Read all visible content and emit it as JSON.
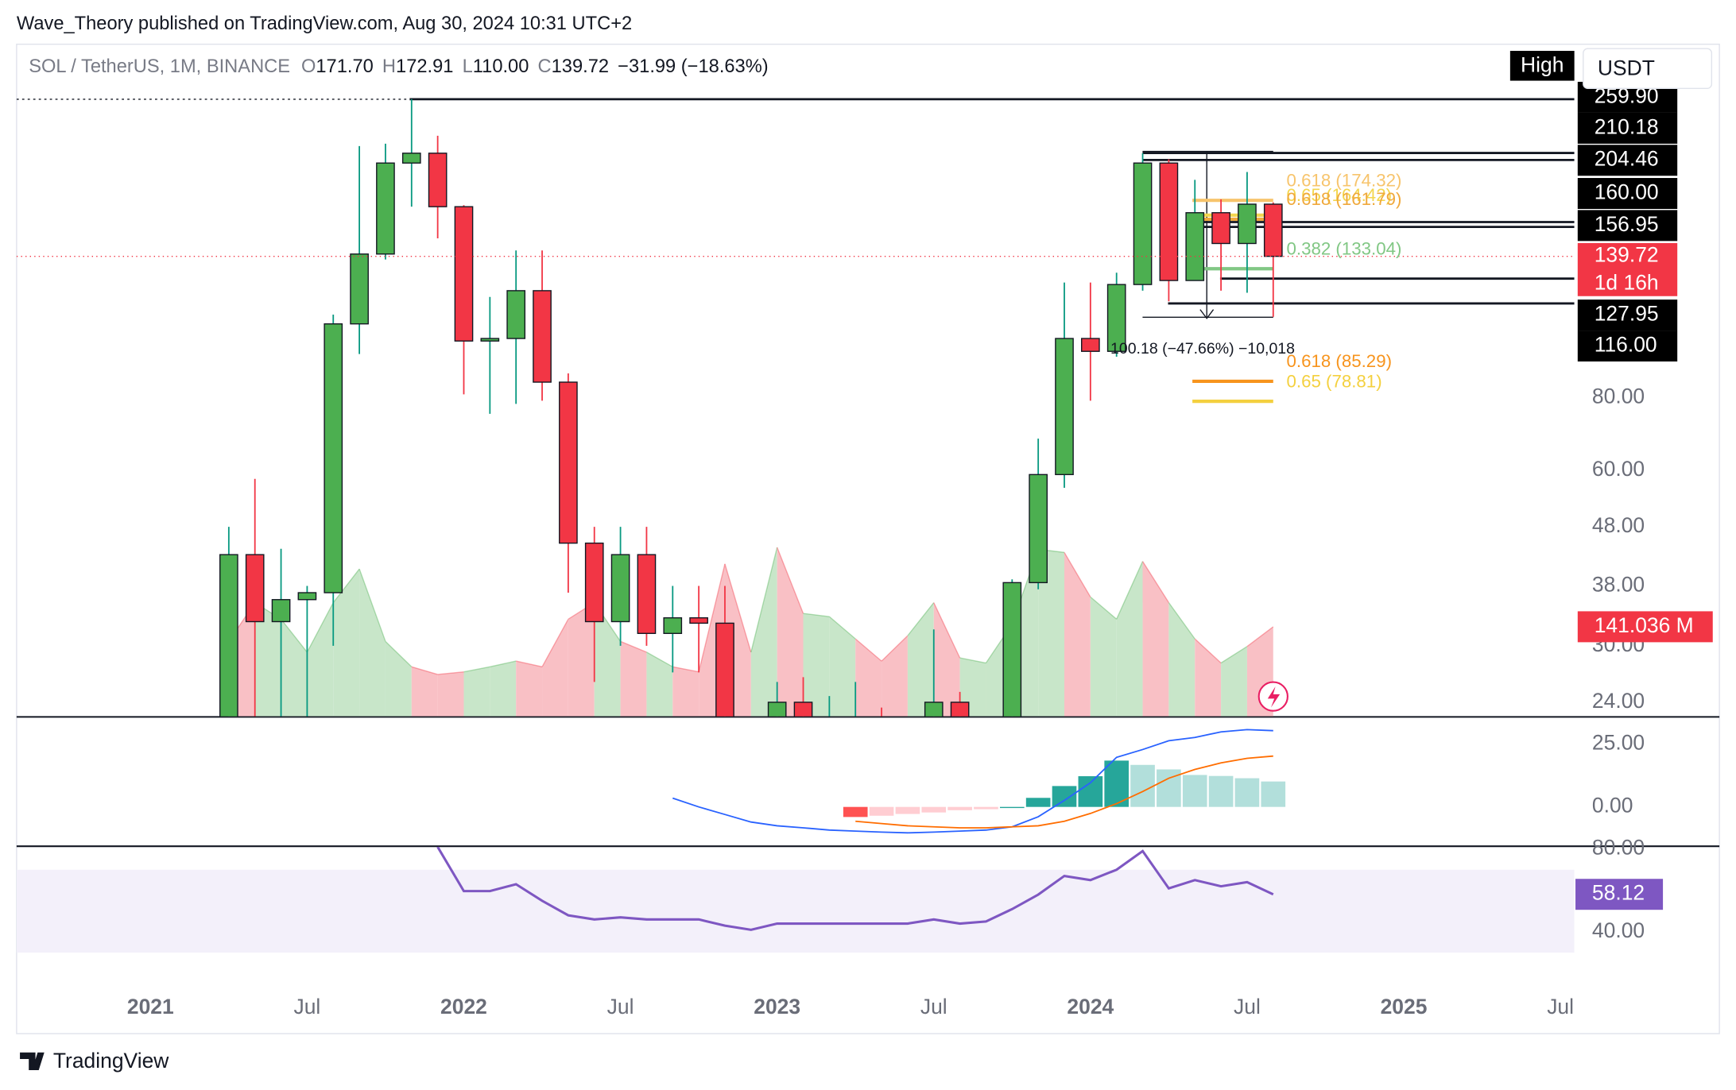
{
  "header": {
    "publisher": "Wave_Theory published on TradingView.com, Aug 30, 2024 10:31 UTC+2",
    "symbol": "SOL / TetherUS, 1M, BINANCE",
    "ohlc": [
      {
        "key": "O",
        "value": "171.70"
      },
      {
        "key": "H",
        "value": "172.91"
      },
      {
        "key": "L",
        "value": "110.00"
      },
      {
        "key": "C",
        "value": "139.72"
      }
    ],
    "change": "−31.99 (−18.63%)",
    "price_source": "High",
    "currency": "USDT"
  },
  "footer": {
    "brand": "TradingView"
  },
  "chart_data": [
    {
      "type": "candlestick",
      "x": [
        "2021-04",
        "2021-05",
        "2021-06",
        "2021-07",
        "2021-08",
        "2021-09",
        "2021-10",
        "2021-11",
        "2021-12",
        "2022-01",
        "2022-02",
        "2022-03",
        "2022-04",
        "2022-05",
        "2022-06",
        "2022-07",
        "2022-08",
        "2022-09",
        "2022-10",
        "2022-11",
        "2022-12",
        "2023-01",
        "2023-02",
        "2023-03",
        "2023-04",
        "2023-05",
        "2023-06",
        "2023-07",
        "2023-08",
        "2023-09",
        "2023-10",
        "2023-11",
        "2023-12",
        "2024-01",
        "2024-02",
        "2024-03",
        "2024-04",
        "2024-05",
        "2024-06",
        "2024-07",
        "2024-08"
      ],
      "open": [
        19.5,
        43,
        33,
        36,
        37,
        107,
        141,
        202,
        210,
        170,
        100,
        101,
        122,
        85,
        45,
        33,
        43,
        31.5,
        33.5,
        32.8,
        14,
        10,
        24,
        21,
        21,
        21.5,
        20.8,
        18.9,
        24,
        20.6,
        21.2,
        38.5,
        59,
        101,
        96,
        125,
        202,
        127,
        166,
        147,
        171.7
      ],
      "high": [
        48,
        58,
        44,
        38,
        111,
        216,
        218,
        260,
        225,
        171,
        119,
        143,
        143,
        88,
        48,
        48,
        48,
        38,
        38,
        38,
        15,
        26,
        26.5,
        24.6,
        26,
        23.5,
        21,
        32,
        25,
        21.5,
        39,
        68,
        126,
        126,
        131,
        210,
        205,
        189,
        175,
        195,
        172.91
      ],
      "low": [
        18,
        21.6,
        22.1,
        22.5,
        30,
        95,
        138,
        170,
        150,
        81,
        75,
        78,
        79,
        37,
        26,
        30,
        30,
        27,
        27,
        12,
        8,
        9.6,
        19.5,
        15.7,
        19.8,
        18.5,
        13.5,
        18,
        19,
        17,
        21,
        37.5,
        56,
        79,
        94,
        122,
        117,
        127,
        122,
        121,
        110
      ],
      "close": [
        43,
        33,
        36,
        37,
        107,
        141,
        202,
        210,
        170,
        100,
        101,
        122,
        85,
        45,
        33,
        43,
        31.5,
        33.5,
        32.8,
        14,
        10,
        24,
        21,
        21,
        21.5,
        20.8,
        18.9,
        24,
        20.6,
        21.2,
        38.5,
        59,
        101,
        96,
        125,
        202,
        127,
        166,
        147,
        171.7,
        139.72
      ],
      "up_color": "#4caf50",
      "down_color": "#f23645",
      "log_scale": true,
      "xlim": [
        "2020-08",
        "2025-08"
      ],
      "ylim": [
        22.7,
        323
      ],
      "yticks": [
        {
          "value": 80,
          "label": "80.00"
        },
        {
          "value": 60,
          "label": "60.00"
        },
        {
          "value": 48,
          "label": "48.00"
        },
        {
          "value": 38,
          "label": "38.00"
        },
        {
          "value": 30,
          "label": "30.00"
        },
        {
          "value": 24,
          "label": "24.00"
        }
      ],
      "xticks": [
        {
          "value": "2021-01",
          "label": "2021"
        },
        {
          "value": "2021-07",
          "label": "Jul"
        },
        {
          "value": "2022-01",
          "label": "2022"
        },
        {
          "value": "2022-07",
          "label": "Jul"
        },
        {
          "value": "2023-01",
          "label": "2023"
        },
        {
          "value": "2023-07",
          "label": "Jul"
        },
        {
          "value": "2024-01",
          "label": "2024"
        },
        {
          "value": "2024-07",
          "label": "Jul"
        },
        {
          "value": "2025-01",
          "label": "2025"
        },
        {
          "value": "2025-07",
          "label": "Jul"
        }
      ],
      "levels": [
        {
          "value": 259.9,
          "label": "259.90"
        },
        210.18,
        204.46,
        {
          "value": 160,
          "label": "160.00"
        },
        156.95,
        127.95,
        {
          "value": 116,
          "label": "116.00"
        }
      ],
      "countdown": "1d 16h",
      "fib_levels": [
        {
          "label": "0.618 (174.32)",
          "value": 174.32,
          "color": "#f7c46c"
        },
        {
          "label": "0.65 (164.42)",
          "value": 164.42,
          "color": "#f3d64e"
        },
        {
          "label": "0.618 (161.79)",
          "value": 161.79,
          "color": "#f0a93c"
        },
        {
          "label": "0.382 (133.04)",
          "value": 133.04,
          "color": "#81c784"
        },
        {
          "label": "0.618 (85.29)",
          "value": 85.29,
          "color": "#f7941d"
        },
        {
          "label": "0.65 (78.81)",
          "value": 78.81,
          "color": "#f4d03f"
        }
      ],
      "annotations": [
        "100.18 (−47.66%) −10,018"
      ]
    },
    {
      "type": "area",
      "values": [
        118,
        179,
        153,
        101,
        179,
        232,
        118,
        78,
        66,
        70,
        78,
        87,
        78,
        153,
        179,
        118,
        101,
        78,
        70,
        240,
        101,
        266,
        162,
        157,
        122,
        87,
        127,
        179,
        92,
        84,
        145,
        263,
        258,
        188,
        153,
        244,
        179,
        122,
        84,
        110,
        141.036
      ],
      "value_labels": [
        null,
        null,
        null,
        null,
        null,
        null,
        null,
        null,
        null,
        null,
        null,
        null,
        null,
        null,
        null,
        null,
        null,
        null,
        null,
        null,
        null,
        null,
        null,
        null,
        null,
        null,
        null,
        null,
        null,
        null,
        null,
        null,
        null,
        null,
        null,
        null,
        null,
        null,
        null,
        null,
        "141.036 M"
      ],
      "ylim": [
        0,
        1058
      ],
      "up_color": "#c8e6c9",
      "down_color": "#f9c0c5",
      "label_color": "#f23645"
    },
    {
      "type": "macd",
      "ylim": [
        -15.4,
        35.1
      ],
      "yticks": [
        {
          "value": 25,
          "label": "25.00"
        },
        {
          "value": 0,
          "label": "0.00"
        }
      ],
      "series": [
        {
          "color": "#2962ff",
          "values": [
            null,
            null,
            null,
            null,
            null,
            null,
            null,
            null,
            null,
            null,
            null,
            null,
            null,
            null,
            null,
            null,
            null,
            3.5,
            0,
            -3,
            -6,
            -7.5,
            -8.3,
            -9.2,
            -9.6,
            -10,
            -10.3,
            -10,
            -9.6,
            -9.2,
            -7.9,
            -3.9,
            2.6,
            9.6,
            19.7,
            22.8,
            26.3,
            27.6,
            29.8,
            30.7,
            30.3
          ]
        },
        {
          "color": "#ff6d00",
          "values": [
            null,
            null,
            null,
            null,
            null,
            null,
            null,
            null,
            null,
            null,
            null,
            null,
            null,
            null,
            null,
            null,
            null,
            null,
            null,
            null,
            null,
            null,
            null,
            null,
            -5.7,
            -6.6,
            -7.5,
            -7.9,
            -8.3,
            -8.3,
            -7.9,
            -7.5,
            -5.7,
            -2.6,
            1.3,
            6.1,
            11.4,
            14.9,
            17.5,
            19.3,
            20.2
          ]
        }
      ],
      "histogram": {
        "colors": [
          "#26a69a",
          "#b2dfdb",
          "#ffcdd2",
          "#ff5252"
        ],
        "values": [
          null,
          null,
          null,
          null,
          null,
          null,
          null,
          null,
          null,
          null,
          null,
          null,
          null,
          null,
          null,
          null,
          null,
          null,
          null,
          null,
          null,
          null,
          null,
          null,
          -4,
          -3.5,
          -2.8,
          -2.2,
          -1.3,
          -0.9,
          0,
          3.6,
          8.3,
          12.2,
          18.4,
          16.7,
          14.9,
          12.7,
          12.3,
          11.4,
          10.1
        ]
      }
    },
    {
      "type": "line",
      "color": "#7e57c2",
      "band": [
        30,
        70
      ],
      "band_color": "#f3f0fa",
      "ylim": [
        18.1,
        81.07
      ],
      "yticks": [
        {
          "value": 80,
          "label": "80.00"
        },
        {
          "value": 40,
          "label": "40.00"
        }
      ],
      "values": [
        null,
        null,
        null,
        null,
        null,
        null,
        null,
        null,
        81,
        59.7,
        59.7,
        63,
        55,
        48,
        46,
        47,
        46,
        46,
        46,
        43,
        41,
        44,
        44,
        44,
        44,
        44,
        44,
        46,
        44,
        45,
        51,
        58,
        67,
        65,
        70,
        79,
        61,
        65,
        62,
        64,
        58.12
      ]
    }
  ]
}
